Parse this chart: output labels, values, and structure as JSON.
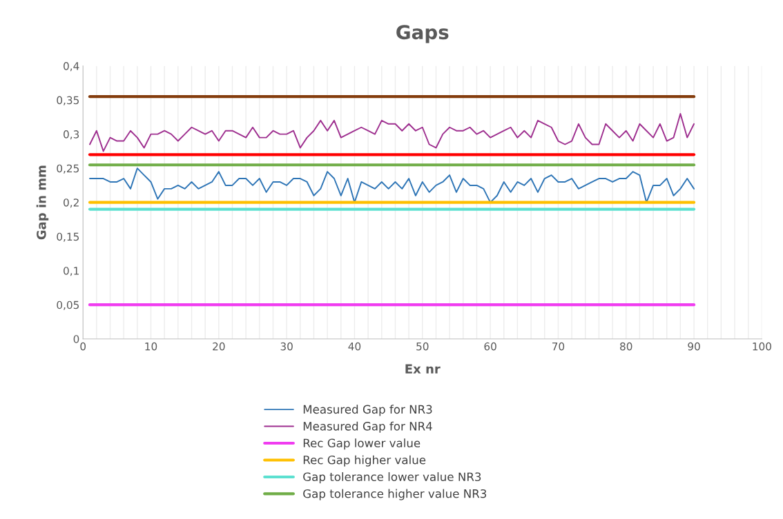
{
  "chart_data": {
    "type": "line",
    "title": "Gaps",
    "xlabel": "Ex nr",
    "ylabel": "Gap in mm",
    "xlim": [
      0,
      100
    ],
    "xticks": [
      0,
      {
        "value": 2,
        "label": null
      },
      {
        "value": 4,
        "label": null
      },
      {
        "value": 6,
        "label": null
      },
      {
        "value": 8,
        "label": null
      },
      10,
      {
        "value": 12,
        "label": null
      },
      {
        "value": 14,
        "label": null
      },
      {
        "value": 16,
        "label": null
      },
      {
        "value": 18,
        "label": null
      },
      20,
      {
        "value": 22,
        "label": null
      },
      {
        "value": 24,
        "label": null
      },
      {
        "value": 26,
        "label": null
      },
      {
        "value": 28,
        "label": null
      },
      30,
      {
        "value": 32,
        "label": null
      },
      {
        "value": 34,
        "label": null
      },
      {
        "value": 36,
        "label": null
      },
      {
        "value": 38,
        "label": null
      },
      40,
      {
        "value": 42,
        "label": null
      },
      {
        "value": 44,
        "label": null
      },
      {
        "value": 46,
        "label": null
      },
      {
        "value": 48,
        "label": null
      },
      50,
      {
        "value": 52,
        "label": null
      },
      {
        "value": 54,
        "label": null
      },
      {
        "value": 56,
        "label": null
      },
      {
        "value": 58,
        "label": null
      },
      60,
      {
        "value": 62,
        "label": null
      },
      {
        "value": 64,
        "label": null
      },
      {
        "value": 66,
        "label": null
      },
      {
        "value": 68,
        "label": null
      },
      70,
      {
        "value": 72,
        "label": null
      },
      {
        "value": 74,
        "label": null
      },
      {
        "value": 76,
        "label": null
      },
      {
        "value": 78,
        "label": null
      },
      80,
      {
        "value": 82,
        "label": null
      },
      {
        "value": 84,
        "label": null
      },
      {
        "value": 86,
        "label": null
      },
      {
        "value": 88,
        "label": null
      },
      90,
      {
        "value": 92,
        "label": null
      },
      {
        "value": 94,
        "label": null
      },
      {
        "value": 96,
        "label": null
      },
      {
        "value": 98,
        "label": null
      },
      100
    ],
    "ylim": [
      0,
      0.4
    ],
    "yticks": [
      {
        "value": 0,
        "label": "0"
      },
      {
        "value": 0.05,
        "label": "0,05"
      },
      {
        "value": 0.1,
        "label": "0,1"
      },
      {
        "value": 0.15,
        "label": "0,15"
      },
      {
        "value": 0.2,
        "label": "0,2"
      },
      {
        "value": 0.25,
        "label": "0,25"
      },
      {
        "value": 0.3,
        "label": "0,3"
      },
      {
        "value": 0.35,
        "label": "0,35"
      },
      {
        "value": 0.4,
        "label": "0,4"
      }
    ],
    "grid": "x",
    "legend": "bottom",
    "marker": "none",
    "line_style": "solid",
    "series": [
      {
        "name": "Measured Gap for NR3",
        "color": "#2e75b6",
        "x": [
          1,
          2,
          3,
          4,
          5,
          6,
          7,
          8,
          9,
          10,
          11,
          12,
          13,
          14,
          15,
          16,
          17,
          18,
          19,
          20,
          21,
          22,
          23,
          24,
          25,
          26,
          27,
          28,
          29,
          30,
          31,
          32,
          33,
          34,
          35,
          36,
          37,
          38,
          39,
          40,
          41,
          42,
          43,
          44,
          45,
          46,
          47,
          48,
          49,
          50,
          51,
          52,
          53,
          54,
          55,
          56,
          57,
          58,
          59,
          60,
          61,
          62,
          63,
          64,
          65,
          66,
          67,
          68,
          69,
          70,
          71,
          72,
          73,
          74,
          75,
          76,
          77,
          78,
          79,
          80,
          81,
          82,
          83,
          84,
          85,
          86,
          87,
          88,
          89,
          90
        ],
        "values": [
          0.235,
          0.235,
          0.235,
          0.23,
          0.23,
          0.235,
          0.22,
          0.25,
          0.24,
          0.23,
          0.205,
          0.22,
          0.22,
          0.225,
          0.22,
          0.23,
          0.22,
          0.225,
          0.23,
          0.245,
          0.225,
          0.225,
          0.235,
          0.235,
          0.225,
          0.235,
          0.215,
          0.23,
          0.23,
          0.225,
          0.235,
          0.235,
          0.23,
          0.21,
          0.22,
          0.245,
          0.235,
          0.21,
          0.235,
          0.2,
          0.23,
          0.225,
          0.22,
          0.23,
          0.22,
          0.23,
          0.22,
          0.235,
          0.21,
          0.23,
          0.215,
          0.225,
          0.23,
          0.24,
          0.215,
          0.235,
          0.225,
          0.225,
          0.22,
          0.2,
          0.21,
          0.23,
          0.215,
          0.23,
          0.225,
          0.235,
          0.215,
          0.235,
          0.24,
          0.23,
          0.23,
          0.235,
          0.22,
          0.225,
          0.23,
          0.235,
          0.235,
          0.23,
          0.235,
          0.235,
          0.245,
          0.24,
          0.2,
          0.225,
          0.225,
          0.235,
          0.21,
          0.22,
          0.235,
          0.22
        ]
      },
      {
        "name": "Measured Gap for NR4",
        "color": "#9e2f8f",
        "x": [
          1,
          2,
          3,
          4,
          5,
          6,
          7,
          8,
          9,
          10,
          11,
          12,
          13,
          14,
          15,
          16,
          17,
          18,
          19,
          20,
          21,
          22,
          23,
          24,
          25,
          26,
          27,
          28,
          29,
          30,
          31,
          32,
          33,
          34,
          35,
          36,
          37,
          38,
          39,
          40,
          41,
          42,
          43,
          44,
          45,
          46,
          47,
          48,
          49,
          50,
          51,
          52,
          53,
          54,
          55,
          56,
          57,
          58,
          59,
          60,
          61,
          62,
          63,
          64,
          65,
          66,
          67,
          68,
          69,
          70,
          71,
          72,
          73,
          74,
          75,
          76,
          77,
          78,
          79,
          80,
          81,
          82,
          83,
          84,
          85,
          86,
          87,
          88,
          89,
          90
        ],
        "values": [
          0.285,
          0.305,
          0.275,
          0.295,
          0.29,
          0.29,
          0.305,
          0.295,
          0.28,
          0.3,
          0.3,
          0.305,
          0.3,
          0.29,
          0.3,
          0.31,
          0.305,
          0.3,
          0.305,
          0.29,
          0.305,
          0.305,
          0.3,
          0.295,
          0.31,
          0.295,
          0.295,
          0.305,
          0.3,
          0.3,
          0.305,
          0.28,
          0.295,
          0.305,
          0.32,
          0.305,
          0.32,
          0.295,
          0.3,
          0.305,
          0.31,
          0.305,
          0.3,
          0.32,
          0.315,
          0.315,
          0.305,
          0.315,
          0.305,
          0.31,
          0.285,
          0.28,
          0.3,
          0.31,
          0.305,
          0.305,
          0.31,
          0.3,
          0.305,
          0.295,
          0.3,
          0.305,
          0.31,
          0.295,
          0.305,
          0.295,
          0.32,
          0.315,
          0.31,
          0.29,
          0.285,
          0.29,
          0.315,
          0.295,
          0.285,
          0.285,
          0.315,
          0.305,
          0.295,
          0.305,
          0.29,
          0.315,
          0.305,
          0.295,
          0.315,
          0.29,
          0.295,
          0.33,
          0.295,
          0.315
        ]
      },
      {
        "name": "Rec Gap lower value",
        "color": "#f03cf0",
        "x": [
          1,
          90
        ],
        "values": [
          0.05,
          0.05
        ]
      },
      {
        "name": "Rec Gap higher value",
        "color": "#ffc000",
        "x": [
          1,
          90
        ],
        "values": [
          0.2,
          0.2
        ]
      },
      {
        "name": "Gap tolerance lower value NR3",
        "color": "#5ce0d0",
        "x": [
          1,
          90
        ],
        "values": [
          0.19,
          0.19
        ]
      },
      {
        "name": "Gap tolerance higher value NR3",
        "color": "#70ad47",
        "x": [
          1,
          90
        ],
        "values": [
          0.255,
          0.255
        ]
      },
      {
        "color": "#ff0000",
        "x": [
          1,
          90
        ],
        "values": [
          0.27,
          0.27
        ]
      },
      {
        "color": "#843c0c",
        "x": [
          1,
          90
        ],
        "values": [
          0.355,
          0.355
        ]
      }
    ]
  }
}
